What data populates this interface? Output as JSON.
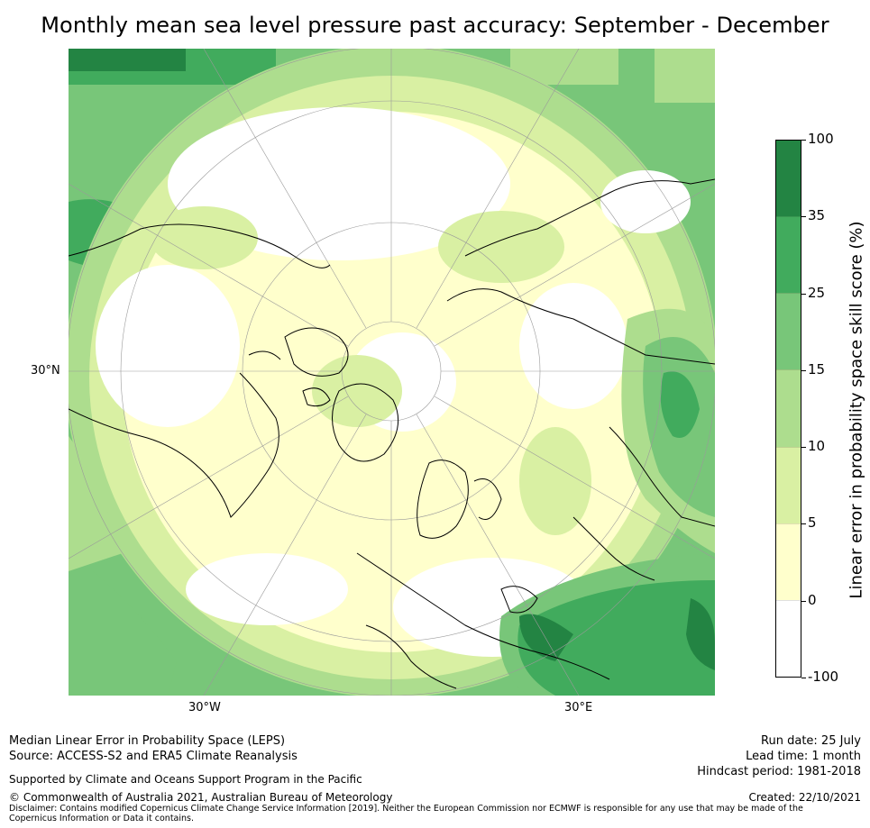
{
  "title": "Monthly mean sea level pressure past accuracy: September - December",
  "map": {
    "lat_labels": [
      "30°N"
    ],
    "lon_labels": [
      "30°W",
      "30°E"
    ],
    "colors": {
      "white": "#ffffff",
      "c0": "#ffffcc",
      "c5": "#d9f0a3",
      "c10": "#addd8e",
      "c15": "#78c679",
      "c25": "#41ab5d",
      "c35": "#238443",
      "coast": "#000000",
      "grid": "#b0b0b0"
    }
  },
  "colorbar": {
    "title": "Linear error in probability space skill score (%)",
    "tick_labels": [
      "100",
      "35",
      "25",
      "15",
      "10",
      "5",
      "0",
      "-100"
    ],
    "segment_colors": [
      "#238443",
      "#41ab5d",
      "#78c679",
      "#addd8e",
      "#d9f0a3",
      "#ffffcc",
      "#ffffff"
    ]
  },
  "footer": {
    "left_line1": "Median Linear Error in Probability Space (LEPS)",
    "left_line2": "Source: ACCESS-S2 and ERA5 Climate Reanalysis",
    "support": "Supported by Climate and Oceans Support Program in the Pacific",
    "copyright": "© Commonwealth of Australia 2021, Australian Bureau of Meteorology",
    "disclaimer": "Disclaimer: Contains modified Copernicus Climate Change Service Information [2019]. Neither the European Commission nor ECMWF is responsible for any use that may be made of the Copernicus Information or Data it contains.",
    "run_date": "Run date: 25 July",
    "lead_time": "Lead time: 1 month",
    "hindcast": "Hindcast period: 1981-2018",
    "created": "Created: 22/10/2021"
  }
}
